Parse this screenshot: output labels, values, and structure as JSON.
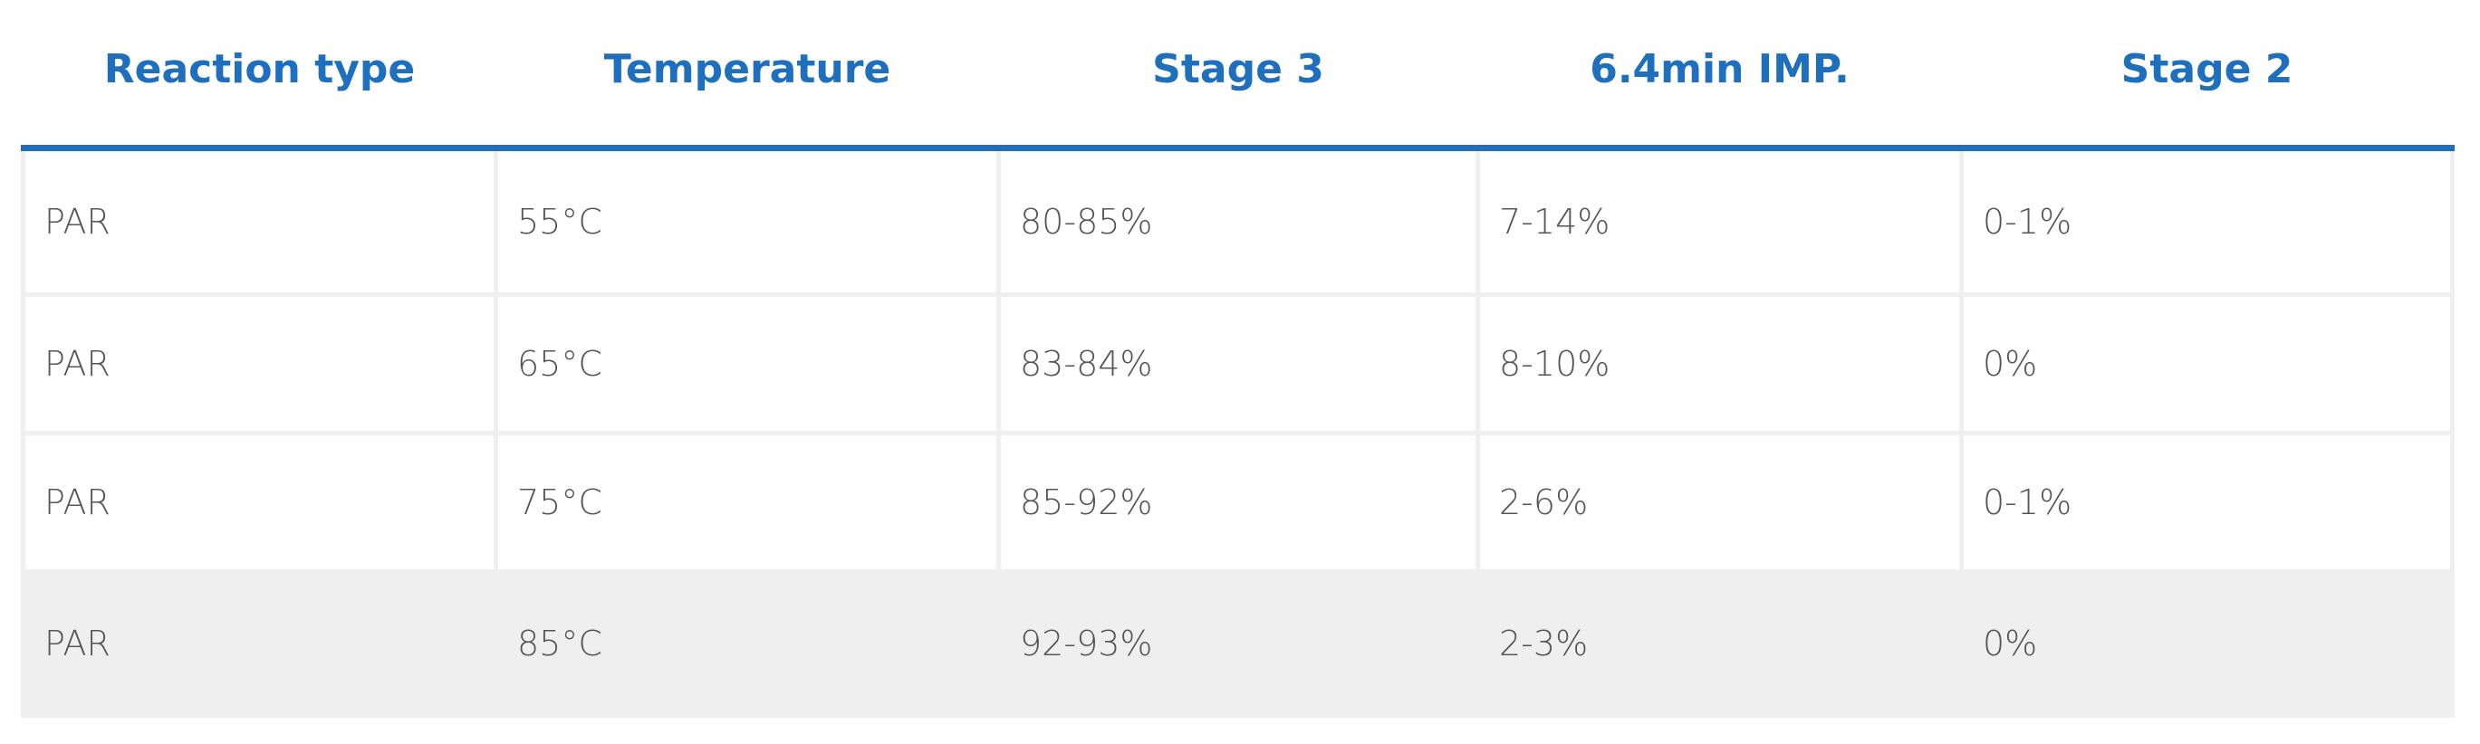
{
  "table": {
    "header": [
      "Reaction type",
      "Temperature",
      "Stage 3",
      "6.4min IMP.",
      "Stage 2"
    ],
    "rows": [
      [
        "PAR",
        "55°C",
        "80-85%",
        "7-14%",
        "0-1%"
      ],
      [
        "PAR",
        "65°C",
        "83-84%",
        "8-10%",
        "0%"
      ],
      [
        "PAR",
        "75°C",
        "85-92%",
        "2-6%",
        "0-1%"
      ],
      [
        "PAR",
        "85°C",
        "92-93%",
        "2-3%",
        "0%"
      ]
    ]
  }
}
